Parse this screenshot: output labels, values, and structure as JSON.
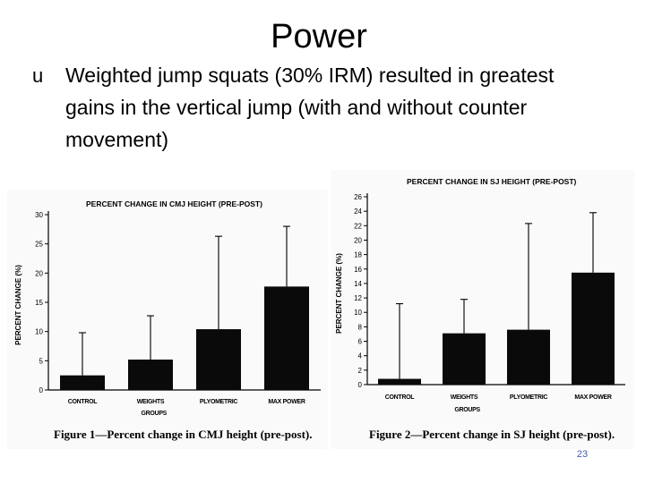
{
  "slide": {
    "title": "Power",
    "bullet_marker": "u",
    "bullet_text": "Weighted jump squats (30% IRM) resulted in greatest gains in the vertical jump (with and without counter movement)",
    "page_number": "23"
  },
  "chart_data": [
    {
      "type": "bar",
      "title": "PERCENT CHANGE IN CMJ HEIGHT (PRE-POST)",
      "categories": [
        "CONTROL",
        "WEIGHTS",
        "PLYOMETRIC",
        "MAX POWER"
      ],
      "values": [
        2.5,
        5.2,
        10.4,
        17.7
      ],
      "error_upper": [
        9.8,
        12.7,
        26.3,
        28.0
      ],
      "xlabel": "GROUPS",
      "ylabel": "PERCENT CHANGE (%)",
      "ylim": [
        0,
        30
      ],
      "yticks": [
        0,
        5,
        10,
        15,
        20,
        25,
        30
      ],
      "grid": false,
      "caption": "Figure 1—Percent change in CMJ height (pre-post)."
    },
    {
      "type": "bar",
      "title": "PERCENT CHANGE IN SJ HEIGHT (PRE-POST)",
      "categories": [
        "CONTROL",
        "WEIGHTS",
        "PLYOMETRIC",
        "MAX POWER"
      ],
      "values": [
        0.8,
        7.1,
        7.6,
        15.5
      ],
      "error_upper": [
        11.2,
        11.8,
        22.3,
        23.8
      ],
      "xlabel": "GROUPS",
      "ylabel": "PERCENT CHANGE (%)",
      "ylim": [
        0,
        26
      ],
      "yticks": [
        0,
        2,
        4,
        6,
        8,
        10,
        12,
        14,
        16,
        18,
        20,
        22,
        24,
        26
      ],
      "grid": false,
      "caption": "Figure 2—Percent change in SJ height (pre-post)."
    }
  ]
}
